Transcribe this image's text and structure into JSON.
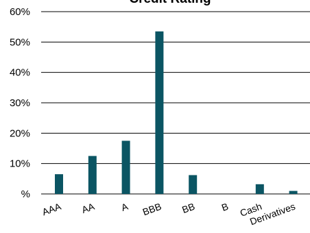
{
  "chart_data": {
    "type": "bar",
    "title": "Credit Rating",
    "xlabel": "",
    "ylabel": "",
    "categories": [
      "AAA",
      "AA",
      "A",
      "BBB",
      "BB",
      "B",
      "Cash",
      "Derivatives"
    ],
    "values": [
      6.5,
      12.5,
      17.5,
      53.5,
      6.2,
      0,
      3.2,
      1.0
    ],
    "ylim": [
      0,
      60
    ],
    "y_ticks": [
      0,
      10,
      20,
      30,
      40,
      50,
      60
    ],
    "y_tick_labels": [
      "%",
      "10%",
      "20%",
      "30%",
      "40%",
      "50%",
      "60%"
    ],
    "grid": true,
    "legend": "none",
    "bar_color": "#0b5563"
  }
}
